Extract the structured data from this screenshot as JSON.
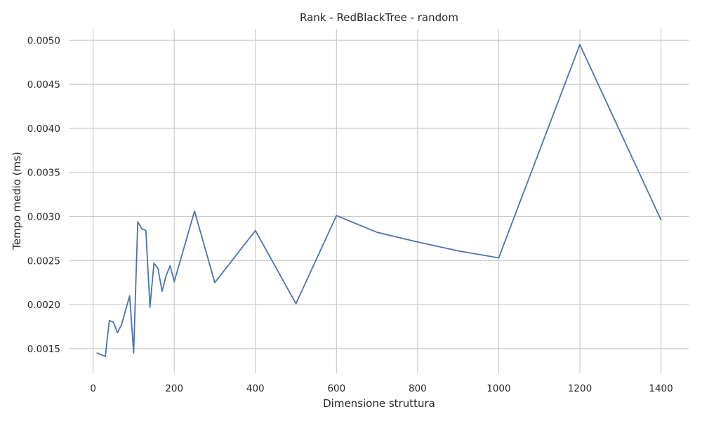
{
  "chart_data": {
    "type": "line",
    "title": "Rank - RedBlackTree - random",
    "xlabel": "Dimensione struttura",
    "ylabel": "Tempo medio (ms)",
    "xlim": [
      -60,
      1470
    ],
    "ylim": [
      0.00122,
      0.00513
    ],
    "xticks": [
      0,
      200,
      400,
      600,
      800,
      1000,
      1200,
      1400
    ],
    "xtick_labels": [
      "0",
      "200",
      "400",
      "600",
      "800",
      "1000",
      "1200",
      "1400"
    ],
    "yticks": [
      0.0015,
      0.002,
      0.0025,
      0.003,
      0.0035,
      0.004,
      0.0045,
      0.005
    ],
    "ytick_labels": [
      "0.0015",
      "0.0020",
      "0.0025",
      "0.0030",
      "0.0035",
      "0.0040",
      "0.0045",
      "0.0050"
    ],
    "grid": true,
    "line_color": "#4c72b0",
    "series": [
      {
        "x": [
          10,
          30,
          40,
          50,
          60,
          70,
          90,
          100,
          110,
          120,
          130,
          140,
          150,
          160,
          170,
          180,
          190,
          200,
          250,
          300,
          400,
          500,
          600,
          700,
          800,
          900,
          1000,
          1200,
          1400
        ],
        "y": [
          0.00145,
          0.00141,
          0.00182,
          0.0018,
          0.00168,
          0.00177,
          0.0021,
          0.00145,
          0.00294,
          0.00286,
          0.00284,
          0.00197,
          0.00247,
          0.00241,
          0.00215,
          0.00233,
          0.00244,
          0.00226,
          0.00306,
          0.00225,
          0.00284,
          0.00201,
          0.00301,
          0.00282,
          0.00271,
          0.00261,
          0.00253,
          0.00495,
          0.00296
        ]
      }
    ]
  }
}
